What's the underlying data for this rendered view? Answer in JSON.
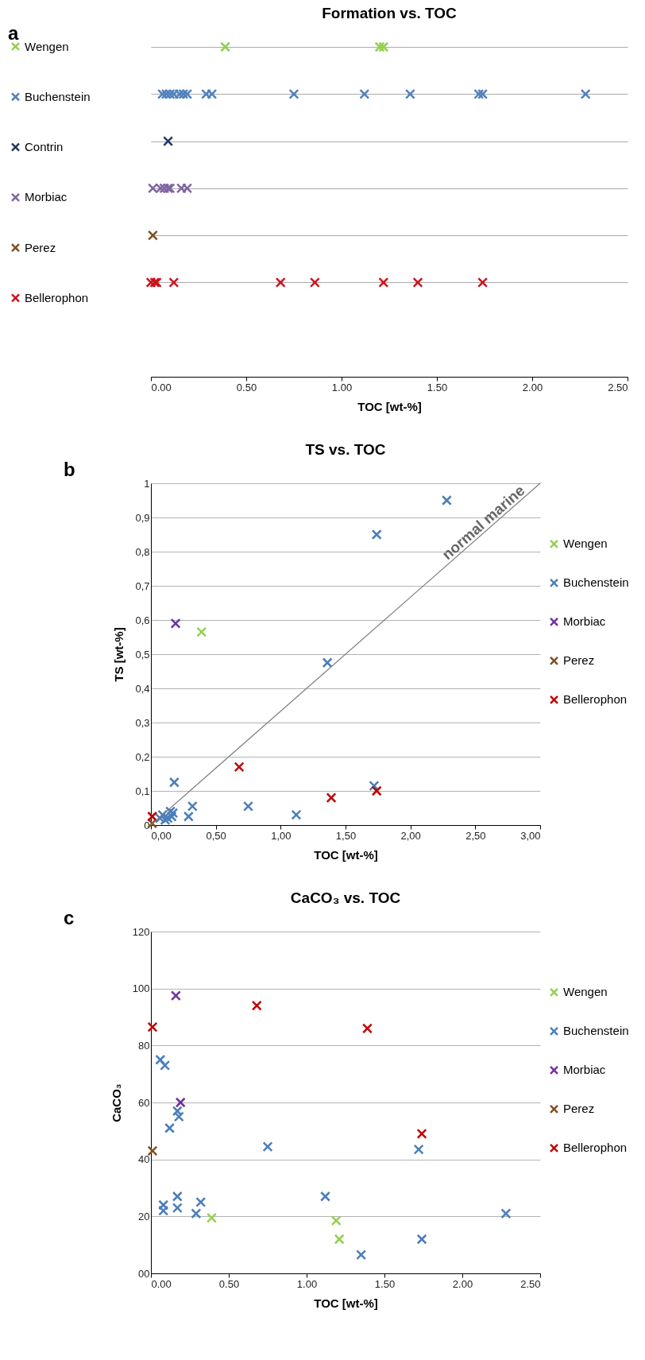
{
  "chart_data": [
    {
      "type": "scatter",
      "title": "Formation vs. TOC",
      "xlabel": "TOC [wt-%]",
      "annotations": [
        "a"
      ],
      "orientation": "horizontal",
      "categories": [
        "Wengen",
        "Buchenstein",
        "Contrin",
        "Morbiac",
        "Perez",
        "Bellerophon"
      ],
      "xlim": [
        0,
        2.5
      ],
      "xticks": [
        {
          "value": 0,
          "label": "0.00"
        },
        {
          "value": 0.5,
          "label": "0.50"
        },
        {
          "value": 1,
          "label": "1.00"
        },
        {
          "value": 1.5,
          "label": "1.50"
        },
        {
          "value": 2,
          "label": "2.00"
        },
        {
          "value": 2.5,
          "label": "2.50"
        }
      ],
      "grid": "y",
      "legend": "left",
      "tick_labels": "x",
      "marker": "cross",
      "series": [
        {
          "name": "Wengen",
          "color": "#92d050",
          "x": [
            "Wengen",
            "Wengen",
            "Wengen"
          ],
          "values": [
            0.39,
            1.2,
            1.22
          ]
        },
        {
          "name": "Buchenstein",
          "color": "#4f81bd",
          "x": [
            "Buchenstein",
            "Buchenstein",
            "Buchenstein",
            "Buchenstein",
            "Buchenstein",
            "Buchenstein",
            "Buchenstein",
            "Buchenstein",
            "Buchenstein",
            "Buchenstein",
            "Buchenstein",
            "Buchenstein",
            "Buchenstein",
            "Buchenstein",
            "Buchenstein"
          ],
          "values": [
            0.06,
            0.08,
            0.1,
            0.12,
            0.15,
            0.17,
            0.19,
            0.29,
            0.32,
            0.75,
            1.12,
            1.36,
            1.72,
            1.74,
            2.28
          ]
        },
        {
          "name": "Contrin",
          "color": "#1f3864",
          "x": [
            "Contrin"
          ],
          "values": [
            0.09
          ]
        },
        {
          "name": "Morbiac",
          "color": "#8064a2",
          "x": [
            "Morbiac",
            "Morbiac",
            "Morbiac",
            "Morbiac",
            "Morbiac",
            "Morbiac",
            "Morbiac"
          ],
          "values": [
            0.01,
            0.05,
            0.07,
            0.09,
            0.1,
            0.16,
            0.19
          ]
        },
        {
          "name": "Perez",
          "color": "#7f4f21",
          "x": [
            "Perez"
          ],
          "values": [
            0.01
          ]
        },
        {
          "name": "Bellerophon",
          "color": "#d0121b",
          "x": [
            "Bellerophon",
            "Bellerophon",
            "Bellerophon",
            "Bellerophon",
            "Bellerophon",
            "Bellerophon",
            "Bellerophon",
            "Bellerophon",
            "Bellerophon"
          ],
          "values": [
            0.0,
            0.02,
            0.03,
            0.12,
            0.68,
            0.86,
            1.22,
            1.4,
            1.74
          ]
        }
      ]
    },
    {
      "type": "scatter",
      "title": "TS vs. TOC",
      "xlabel": "TOC [wt-%]",
      "ylabel": "TS [wt-%]",
      "annotations": [
        "b",
        {
          "text": "normal marine",
          "x": 2.62,
          "y": 0.86
        }
      ],
      "xlim": [
        0,
        3
      ],
      "xticks": [
        {
          "value": 0,
          "label": "0,00"
        },
        {
          "value": 0.5,
          "label": "0,50"
        },
        {
          "value": 1,
          "label": "1,00"
        },
        {
          "value": 1.5,
          "label": "1,50"
        },
        {
          "value": 2,
          "label": "2,00"
        },
        {
          "value": 2.5,
          "label": "2,50"
        },
        {
          "value": 3,
          "label": "3,00"
        }
      ],
      "ylim": [
        0,
        1
      ],
      "yticks": [
        0,
        {
          "value": 0.1,
          "label": "0,1"
        },
        {
          "value": 0.2,
          "label": "0,2"
        },
        {
          "value": 0.3,
          "label": "0,3"
        },
        {
          "value": 0.4,
          "label": "0,4"
        },
        {
          "value": 0.5,
          "label": "0,5"
        },
        {
          "value": 0.6,
          "label": "0,6"
        },
        {
          "value": 0.7,
          "label": "0,7"
        },
        {
          "value": 0.8,
          "label": "0,8"
        },
        {
          "value": 0.9,
          "label": "0,9"
        },
        1
      ],
      "grid": "y",
      "legend": "right",
      "marker": "cross",
      "series": [
        {
          "name": "Wengen",
          "color": "#92d050",
          "x": [
            0.39
          ],
          "values": [
            0.565
          ]
        },
        {
          "name": "Buchenstein",
          "color": "#4a7ebb",
          "x": [
            0.07,
            0.09,
            0.11,
            0.13,
            0.15,
            0.16,
            0.17,
            0.18,
            0.29,
            0.32,
            0.75,
            1.12,
            1.36,
            1.72,
            1.74,
            2.28
          ],
          "values": [
            0.02,
            0.03,
            0.015,
            0.02,
            0.04,
            0.025,
            0.035,
            0.125,
            0.025,
            0.055,
            0.055,
            0.03,
            0.475,
            0.115,
            0.85,
            0.95
          ]
        },
        {
          "name": "Morbiac",
          "color": "#7030a0",
          "x": [
            0.19
          ],
          "values": [
            0.59
          ]
        },
        {
          "name": "Perez",
          "color": "#7f4f21",
          "x": [
            0.01
          ],
          "values": [
            0.005
          ]
        },
        {
          "name": "Bellerophon",
          "color": "#c00000",
          "x": [
            0.01,
            0.68,
            1.39,
            1.74
          ],
          "values": [
            0.025,
            0.17,
            0.08,
            0.1
          ]
        },
        {
          "type": "line",
          "color": "#7f7f7f",
          "marker": "none",
          "x": [
            0,
            3
          ],
          "values": [
            0,
            1
          ]
        }
      ]
    },
    {
      "type": "scatter",
      "title": "CaCO₃ vs. TOC",
      "xlabel": "TOC [wt-%]",
      "ylabel": "CaCO₃",
      "annotations": [
        "c"
      ],
      "xlim": [
        0,
        2.5
      ],
      "xticks": [
        {
          "value": 0,
          "label": "0.00"
        },
        {
          "value": 0.5,
          "label": "0.50"
        },
        {
          "value": 1,
          "label": "1.00"
        },
        {
          "value": 1.5,
          "label": "1.50"
        },
        {
          "value": 2,
          "label": "2.00"
        },
        {
          "value": 2.5,
          "label": "2.50"
        }
      ],
      "ylim": [
        0,
        120
      ],
      "yticks": [
        {
          "value": 0,
          "label": "00"
        },
        20,
        40,
        60,
        80,
        100,
        120
      ],
      "grid": "y",
      "legend": "right",
      "marker": "cross",
      "series": [
        {
          "name": "Wengen",
          "color": "#92d050",
          "x": [
            0.39,
            1.19,
            1.21
          ],
          "values": [
            19.5,
            18.5,
            12
          ]
        },
        {
          "name": "Buchenstein",
          "color": "#4a7ebb",
          "x": [
            0.06,
            0.09,
            0.12,
            0.17,
            0.18,
            0.08,
            0.08,
            0.17,
            0.17,
            0.29,
            0.32,
            0.75,
            1.12,
            1.35,
            1.72,
            1.74,
            2.28
          ],
          "values": [
            75,
            73,
            51,
            57,
            55,
            24,
            22,
            27,
            23,
            21,
            25,
            44.5,
            27,
            6.5,
            43.5,
            12,
            21
          ]
        },
        {
          "name": "Morbiac",
          "color": "#7030a0",
          "x": [
            0.16,
            0.19
          ],
          "values": [
            97.5,
            60
          ]
        },
        {
          "name": "Perez",
          "color": "#7f4f21",
          "x": [
            0.01
          ],
          "values": [
            43
          ]
        },
        {
          "name": "Bellerophon",
          "color": "#c00000",
          "x": [
            0.01,
            0.68,
            1.39,
            1.74
          ],
          "values": [
            86.5,
            94,
            86,
            49
          ]
        }
      ]
    }
  ]
}
